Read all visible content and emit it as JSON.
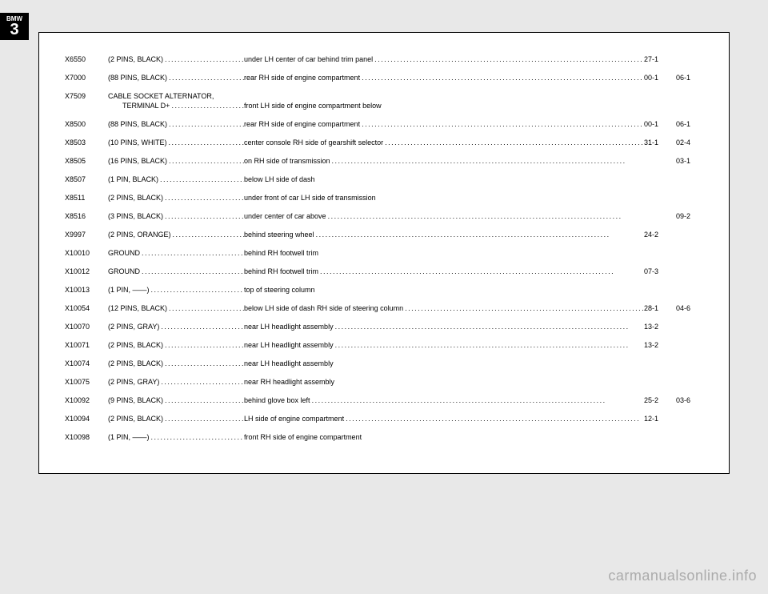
{
  "logo": {
    "top": "BMW",
    "big": "3"
  },
  "rows": [
    {
      "code": "X6550",
      "pins": "(2 PINS, BLACK)",
      "loc": "under LH center of car behind trim panel",
      "r1": "27-1",
      "r2": ""
    },
    {
      "code": "X7000",
      "pins": "(88 PINS, BLACK)",
      "loc": "rear RH side of engine compartment",
      "r1": "00-1",
      "r2": "06-1"
    },
    {
      "code": "X7509",
      "pins": "CABLE SOCKET ALTERNATOR,",
      "pins2": "TERMINAL D+",
      "loc": "",
      "loc2": "front LH side of engine compartment below",
      "r1": "",
      "r2": ""
    },
    {
      "code": "X8500",
      "pins": "(88 PINS, BLACK)",
      "loc": "rear RH side of engine compartment",
      "r1": "00-1",
      "r2": "06-1"
    },
    {
      "code": "X8503",
      "pins": "(10 PINS, WHITE)",
      "loc": "center console RH side of gearshift selector",
      "r1": "31-1",
      "r2": "02-4"
    },
    {
      "code": "X8505",
      "pins": "(16 PINS, BLACK)",
      "loc": "on RH side of transmission",
      "r1": "",
      "r2": "03-1"
    },
    {
      "code": "X8507",
      "pins": "(1 PIN, BLACK)",
      "loc": "below LH side of dash",
      "r1": "",
      "r2": "",
      "nodots": true
    },
    {
      "code": "X8511",
      "pins": "(2 PINS, BLACK)",
      "loc": "under front of car LH side of transmission",
      "r1": "",
      "r2": "",
      "nodots": true
    },
    {
      "code": "X8516",
      "pins": "(3 PINS, BLACK)",
      "loc": "under center of car above",
      "r1": "",
      "r2": "09-2"
    },
    {
      "code": "X9997",
      "pins": "(2 PINS, ORANGE)",
      "loc": "behind steering wheel",
      "r1": "24-2",
      "r2": ""
    },
    {
      "code": "X10010",
      "pins": "GROUND",
      "loc": "behind RH footwell trim",
      "r1": "",
      "r2": "",
      "nodots": true
    },
    {
      "code": "X10012",
      "pins": "GROUND",
      "loc": "behind RH footwell trim",
      "r1": "07-3",
      "r2": ""
    },
    {
      "code": "X10013",
      "pins": "(1 PIN, ——)",
      "loc": "top of steering column",
      "r1": "",
      "r2": "",
      "nodots": true
    },
    {
      "code": "X10054",
      "pins": "(12 PINS, BLACK)",
      "loc": "below LH side of dash RH side of steering column",
      "r1": "28-1",
      "r2": "04-6"
    },
    {
      "code": "X10070",
      "pins": "(2 PINS, GRAY)",
      "loc": "near LH headlight assembly",
      "r1": "13-2",
      "r2": ""
    },
    {
      "code": "X10071",
      "pins": "(2 PINS, BLACK)",
      "loc": "near LH headlight assembly",
      "r1": "13-2",
      "r2": ""
    },
    {
      "code": "X10074",
      "pins": "(2 PINS, BLACK)",
      "loc": "near LH headlight assembly",
      "r1": "",
      "r2": "",
      "nodots": true
    },
    {
      "code": "X10075",
      "pins": "(2 PINS, GRAY)",
      "loc": "near RH headlight assembly",
      "r1": "",
      "r2": "",
      "nodots": true
    },
    {
      "code": "X10092",
      "pins": "(9 PINS, BLACK)",
      "loc": "behind glove box left",
      "r1": "25-2",
      "r2": "03-6"
    },
    {
      "code": "X10094",
      "pins": "(2 PINS, BLACK)",
      "loc": "LH side of engine compartment",
      "r1": "12-1",
      "r2": ""
    },
    {
      "code": "X10098",
      "pins": "(1 PIN, ——)",
      "loc": "front RH side of engine compartment",
      "r1": "",
      "r2": "",
      "nodots": true
    }
  ],
  "watermark": "carmanualsonline.info"
}
